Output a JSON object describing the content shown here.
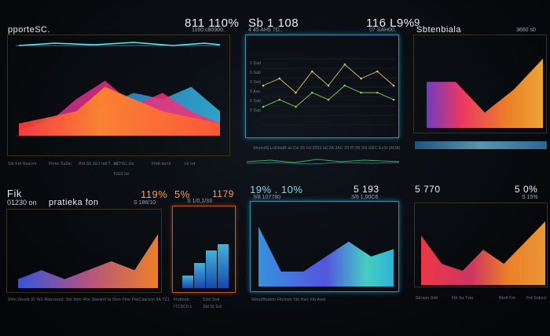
{
  "panels": {
    "p1": {
      "title": "pporteSC.",
      "big": "811 110%",
      "sub": "1160 c80900.",
      "captions": [
        "Sib Ftd Rearon",
        "Fhme Sa3ai",
        "Rid S6 3U1 Ia6'7. Vo",
        "ICTSC.Ua",
        "Fhtb Iacrit",
        "Icl Iot"
      ],
      "extra": "FIU2 Ist"
    },
    "p2": {
      "big": "Sb 1 108",
      "sub": "4 45 AH5 7D..",
      "big2": "116 L9%",
      "sub2": "07 SAH00.",
      "axis": [
        "0 Dad",
        "0 Sab",
        "0 Seb",
        "0 Aac",
        "0 Sab",
        "0 Sap"
      ],
      "captions": [
        "ShnmdS LnDbalR at Cal 26 Fd 3001 lat 2A 3AC 20 Pl 09 SN GRC ExSi (ADA)"
      ]
    },
    "p3": {
      "title": "Sbtenbiala",
      "num": "9",
      "sub": "3660 s0"
    },
    "p4": {
      "title": "Fik",
      "sub": "01230 on",
      "title2": "pratieka fon",
      "big": "119%",
      "sub2": "S 186/10"
    },
    "p5": {
      "big": "5%",
      "big2": "1179",
      "sub": "S 1/0,1/33",
      "captions": [
        "Fhdbtab",
        "S3cl Sob",
        "ITCSC0.c",
        "Sbt St Sol"
      ]
    },
    "p6": {
      "big": "19% . 10%",
      "sub": "3/8 107780",
      "big2": "5 193",
      "sub2": "3/6 1,00C6"
    },
    "p7": {
      "big": "5 770",
      "big2": "5 0%",
      "sub2": "S 15%"
    }
  },
  "bottom": {
    "c4": "Shtn Sbsob  Sl TaS  Rtaroorad: Sbt ltdm  Rhe Sbeantl Ia Ston Flee  FhsCaaraon ltA TZ1",
    "c6": "Gbuotfbadon Fbcloim  Sbi Hart Ftb Aast",
    "c7": [
      "Sbraan Sob",
      "Fbl Sa Tvla",
      "Rbrd Fnt",
      "Fnt Ssbocl"
    ]
  },
  "colors": {
    "orange": "#ff8a2a",
    "red": "#ff3b3b",
    "magenta": "#ff2f8e",
    "cyan": "#39c6f0",
    "blue": "#3a6cf5",
    "bg": "#06080c"
  },
  "chart_data": [
    {
      "type": "area",
      "id": "panel-1",
      "series": [
        {
          "values": [
            2,
            3,
            4,
            8,
            6,
            4,
            3,
            2
          ]
        },
        {
          "values": [
            1,
            2,
            6,
            9,
            5,
            7,
            4,
            2
          ]
        },
        {
          "values": [
            0,
            3,
            2,
            5,
            7,
            6,
            8,
            4
          ]
        }
      ]
    },
    {
      "type": "line",
      "id": "panel-2",
      "series": [
        {
          "values": [
            6,
            7,
            5,
            8,
            6,
            9,
            7,
            8,
            6
          ]
        },
        {
          "values": [
            3,
            4,
            3,
            5,
            4,
            6,
            5,
            5,
            4
          ]
        }
      ]
    },
    {
      "type": "area",
      "id": "panel-3",
      "series": [
        {
          "values": [
            6,
            6,
            2,
            5,
            9
          ]
        }
      ]
    },
    {
      "type": "area",
      "id": "panel-4",
      "series": [
        {
          "values": [
            1,
            2,
            1,
            2,
            3,
            2,
            6
          ]
        }
      ]
    },
    {
      "type": "bar",
      "id": "panel-5",
      "values": [
        2,
        4,
        6,
        7
      ]
    },
    {
      "type": "area",
      "id": "panel-6",
      "series": [
        {
          "values": [
            8,
            2,
            2,
            4,
            6,
            4,
            5
          ]
        }
      ]
    },
    {
      "type": "area",
      "id": "panel-7",
      "series": [
        {
          "values": [
            7,
            3,
            2,
            5,
            3,
            6,
            9
          ]
        }
      ]
    }
  ]
}
